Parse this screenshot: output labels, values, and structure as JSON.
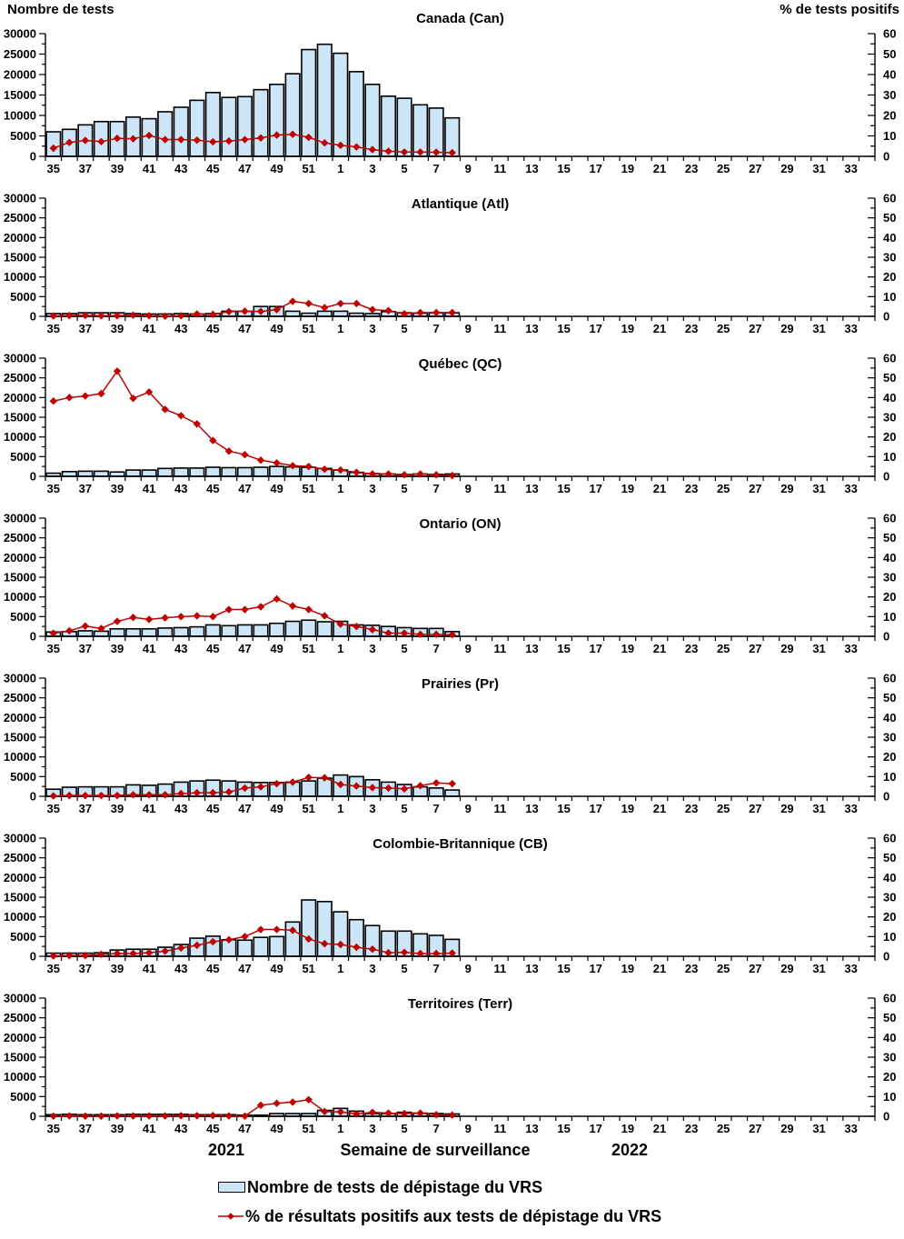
{
  "header": {
    "left_axis_title": "Nombre de tests",
    "right_axis_title": "% de tests positifs"
  },
  "footer": {
    "year_left": "2021",
    "x_axis_title": "Semaine de surveillance",
    "year_right": "2022"
  },
  "legend": [
    {
      "symbol": "bar-swatch-icon",
      "label": "Nombre de tests de dépistage du VRS"
    },
    {
      "symbol": "line-swatch-icon",
      "label": "% de résultats positifs aux tests de dépistage du VRS"
    }
  ],
  "colors": {
    "bar_fill": "#CDE6F7",
    "bar_stroke": "#000000",
    "line": "#C00000",
    "axis": "#000000"
  },
  "axes": {
    "left_max": 30000,
    "left_minor_step": 2500,
    "left_label_step": 5000,
    "left_label_ticks": [
      0,
      5000,
      10000,
      15000,
      20000,
      25000,
      30000
    ],
    "right_max": 60,
    "right_minor_step": 5,
    "right_label_step": 10,
    "right_label_ticks": [
      0,
      10,
      20,
      30,
      40,
      50,
      60
    ],
    "weeks_total": 52,
    "x_tick_labels": [
      35,
      37,
      39,
      41,
      43,
      45,
      47,
      49,
      51,
      1,
      3,
      5,
      7,
      9,
      11,
      13,
      15,
      17,
      19,
      21,
      23,
      25,
      27,
      29,
      31,
      33
    ],
    "data_weeks": [
      35,
      36,
      37,
      38,
      39,
      40,
      41,
      42,
      43,
      44,
      45,
      46,
      47,
      48,
      49,
      50,
      51,
      52,
      1,
      2,
      3,
      4,
      5,
      6,
      7,
      8
    ]
  },
  "chart_data": [
    {
      "type": "bar+line",
      "title": "Canada (Can)",
      "series": [
        {
          "name": "Nombre de tests de dépistage du VRS",
          "axis": "left",
          "values": [
            6000,
            6600,
            7700,
            8500,
            8500,
            9600,
            9200,
            10900,
            12000,
            13700,
            15600,
            14400,
            14600,
            16300,
            17600,
            20200,
            26100,
            27400,
            25200,
            20700,
            17600,
            14700,
            14200,
            12600,
            11800,
            9400
          ]
        },
        {
          "name": "% de résultats positifs aux tests de dépistage du VRS",
          "axis": "right",
          "values": [
            4.0,
            6.8,
            7.8,
            7.2,
            8.8,
            8.6,
            10.2,
            8.2,
            8.2,
            7.9,
            7.1,
            7.5,
            8.2,
            9.0,
            10.4,
            10.8,
            9.3,
            6.6,
            5.4,
            4.6,
            3.3,
            2.5,
            2.1,
            2.1,
            2.0,
            1.8
          ]
        }
      ]
    },
    {
      "type": "bar+line",
      "title": "Atlantique (Atl)",
      "series": [
        {
          "name": "Nombre de tests de dépistage du VRS",
          "axis": "left",
          "values": [
            700,
            700,
            900,
            900,
            900,
            700,
            600,
            600,
            700,
            600,
            700,
            1300,
            1300,
            2500,
            2500,
            1300,
            800,
            1300,
            1300,
            800,
            700,
            1200,
            900,
            800,
            900,
            900
          ]
        },
        {
          "name": "% de résultats positifs aux tests de dépistage du VRS",
          "axis": "right",
          "values": [
            0.2,
            0.4,
            0.5,
            0.3,
            0.3,
            0.6,
            0.3,
            0.1,
            0.3,
            1.2,
            1.0,
            2.4,
            2.6,
            2.5,
            3.4,
            7.6,
            6.5,
            4.4,
            6.5,
            6.5,
            3.4,
            2.9,
            1.3,
            1.9,
            1.9,
            1.9
          ]
        }
      ]
    },
    {
      "type": "bar+line",
      "title": "Québec (QC)",
      "series": [
        {
          "name": "Nombre de tests de dépistage du VRS",
          "axis": "left",
          "values": [
            800,
            1200,
            1300,
            1300,
            1100,
            1600,
            1600,
            2000,
            2100,
            2100,
            2300,
            2200,
            2200,
            2300,
            2500,
            2400,
            2300,
            2000,
            1600,
            1000,
            700,
            600,
            500,
            600,
            500,
            600
          ]
        },
        {
          "name": "% de résultats positifs aux tests de dépistage du VRS",
          "axis": "right",
          "values": [
            38.2,
            40.0,
            40.8,
            42.0,
            53.4,
            39.6,
            42.8,
            34.0,
            30.8,
            26.6,
            18.2,
            12.8,
            11.0,
            8.2,
            6.8,
            5.4,
            5.0,
            3.6,
            3.2,
            2.0,
            1.2,
            1.2,
            0.8,
            1.2,
            0.8,
            0.4
          ]
        }
      ]
    },
    {
      "type": "bar+line",
      "title": "Ontario (ON)",
      "series": [
        {
          "name": "Nombre de tests de dépistage du VRS",
          "axis": "left",
          "values": [
            1100,
            1200,
            1400,
            1300,
            1900,
            1900,
            1900,
            2100,
            2200,
            2400,
            2900,
            2700,
            2900,
            2900,
            3300,
            3800,
            4100,
            3700,
            3800,
            2900,
            2800,
            2500,
            2200,
            2000,
            2000,
            1200
          ]
        },
        {
          "name": "% de résultats positifs aux tests de dépistage du VRS",
          "axis": "right",
          "values": [
            1.6,
            2.8,
            5.2,
            4.0,
            7.6,
            9.6,
            8.6,
            9.4,
            10.0,
            10.4,
            10.0,
            13.6,
            13.6,
            15.0,
            19.0,
            15.4,
            13.6,
            10.4,
            6.2,
            5.0,
            3.4,
            1.6,
            1.6,
            1.0,
            1.0,
            0.8
          ]
        }
      ]
    },
    {
      "type": "bar+line",
      "title": "Prairies (Pr)",
      "series": [
        {
          "name": "Nombre de tests de dépistage du VRS",
          "axis": "left",
          "values": [
            1800,
            2300,
            2400,
            2400,
            2400,
            2900,
            2800,
            3100,
            3600,
            3900,
            4100,
            3900,
            3600,
            3500,
            3500,
            3600,
            3900,
            4600,
            5400,
            5000,
            4200,
            3600,
            3000,
            2400,
            2100,
            1600
          ]
        },
        {
          "name": "% de résultats positifs aux tests de dépistage du VRS",
          "axis": "right",
          "values": [
            0.2,
            0.4,
            0.4,
            0.4,
            0.4,
            0.8,
            0.8,
            0.8,
            1.4,
            1.8,
            1.8,
            2.2,
            4.2,
            4.8,
            6.4,
            7.2,
            9.6,
            9.4,
            6.0,
            5.2,
            4.4,
            4.2,
            3.8,
            5.4,
            6.8,
            6.4
          ]
        }
      ]
    },
    {
      "type": "bar+line",
      "title": "Colombie-Britannique (CB)",
      "series": [
        {
          "name": "Nombre de tests de dépistage du VRS",
          "axis": "left",
          "values": [
            800,
            800,
            800,
            900,
            1600,
            1800,
            1800,
            2300,
            3000,
            4600,
            5100,
            4200,
            4100,
            4800,
            5000,
            8700,
            14300,
            13900,
            11300,
            9300,
            7800,
            6400,
            6400,
            5700,
            5300,
            4300
          ]
        },
        {
          "name": "% de résultats positifs aux tests de dépistage du VRS",
          "axis": "right",
          "values": [
            0.2,
            0.4,
            0.4,
            1.0,
            1.4,
            1.4,
            1.8,
            2.6,
            4.2,
            5.6,
            7.4,
            8.4,
            10.0,
            13.6,
            13.6,
            13.2,
            8.8,
            6.4,
            6.0,
            4.6,
            3.6,
            1.8,
            2.0,
            1.4,
            1.4,
            1.6
          ]
        }
      ]
    },
    {
      "type": "bar+line",
      "title": "Territoires (Terr)",
      "series": [
        {
          "name": "Nombre de tests de dépistage du VRS",
          "axis": "left",
          "values": [
            400,
            500,
            400,
            400,
            400,
            500,
            500,
            500,
            500,
            400,
            400,
            400,
            300,
            300,
            700,
            700,
            700,
            1500,
            2000,
            1300,
            700,
            700,
            1000,
            800,
            700,
            600
          ]
        },
        {
          "name": "% de résultats positifs aux tests de dépistage du VRS",
          "axis": "right",
          "values": [
            0.1,
            0.2,
            0.1,
            0.1,
            0.2,
            0.2,
            0.2,
            0.2,
            0.3,
            0.3,
            0.4,
            0.2,
            0.1,
            5.6,
            6.6,
            7.2,
            8.4,
            2.4,
            2.2,
            1.2,
            2.0,
            1.6,
            1.4,
            1.6,
            0.8,
            0.6
          ]
        }
      ]
    }
  ]
}
